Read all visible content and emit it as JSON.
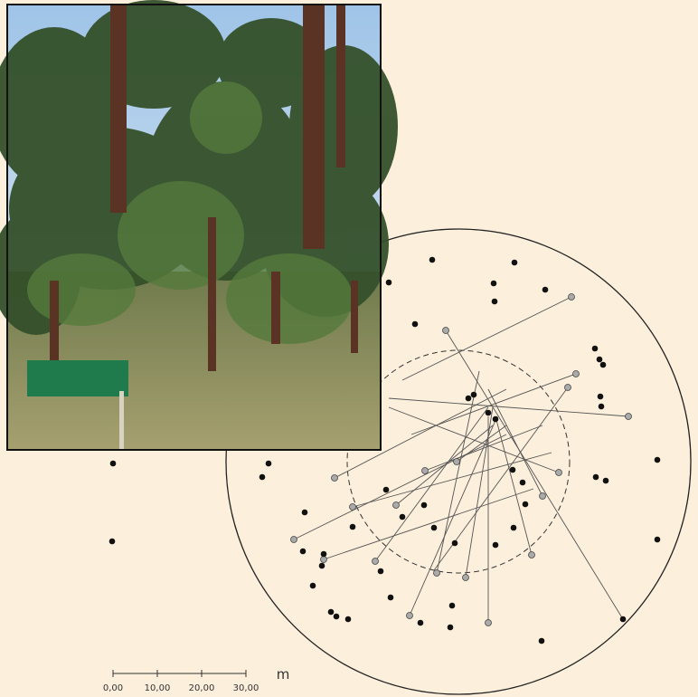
{
  "scale_bar": {
    "labels": [
      "0,00",
      "10,00",
      "20,00",
      "30,00"
    ],
    "unit": "m"
  }
}
